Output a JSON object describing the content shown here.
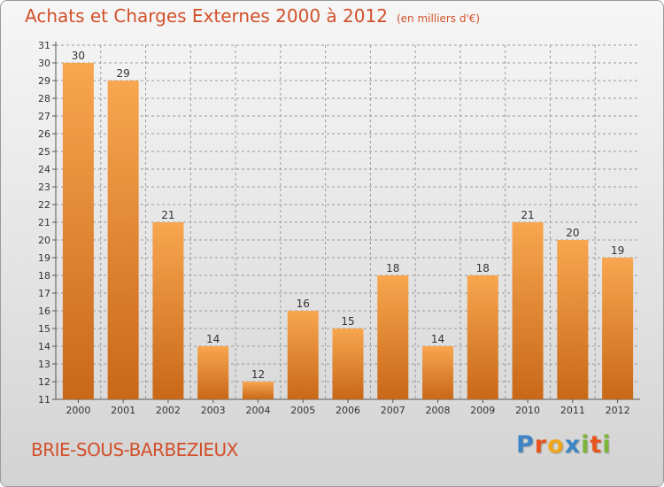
{
  "header": {
    "title": "Achats et Charges Externes 2000 à 2012",
    "subtitle": "(en milliers d'€)"
  },
  "footer": {
    "place": "BRIE-SOUS-BARBEZIEUX",
    "logo": {
      "text": "Proxiti",
      "letters": [
        {
          "char": "P",
          "color": "#3d86c6"
        },
        {
          "char": "r",
          "color": "#e8541c"
        },
        {
          "char": "o",
          "color": "#f2a51a"
        },
        {
          "char": "x",
          "color": "#3d86c6"
        },
        {
          "char": "i",
          "color": "#7bb63a"
        },
        {
          "char": "t",
          "color": "#e8541c"
        },
        {
          "char": "i",
          "color": "#7bb63a"
        }
      ]
    }
  },
  "colors": {
    "title": "#d2502a",
    "bar_light": "#f8a650",
    "bar_dark": "#c86818",
    "grid": "#9a9a9a"
  },
  "chart_data": {
    "type": "bar",
    "categories": [
      "2000",
      "2001",
      "2002",
      "2003",
      "2004",
      "2005",
      "2006",
      "2007",
      "2008",
      "2009",
      "2010",
      "2011",
      "2012"
    ],
    "values": [
      30,
      29,
      21,
      14,
      12,
      16,
      15,
      18,
      14,
      18,
      21,
      20,
      19
    ],
    "title": "Achats et Charges Externes 2000 à 2012",
    "ylim": [
      11,
      31
    ],
    "yticks": [
      11,
      12,
      13,
      14,
      15,
      16,
      17,
      18,
      19,
      20,
      21,
      22,
      23,
      24,
      25,
      26,
      27,
      28,
      29,
      30,
      31
    ],
    "grid": true,
    "data_labels": true
  }
}
